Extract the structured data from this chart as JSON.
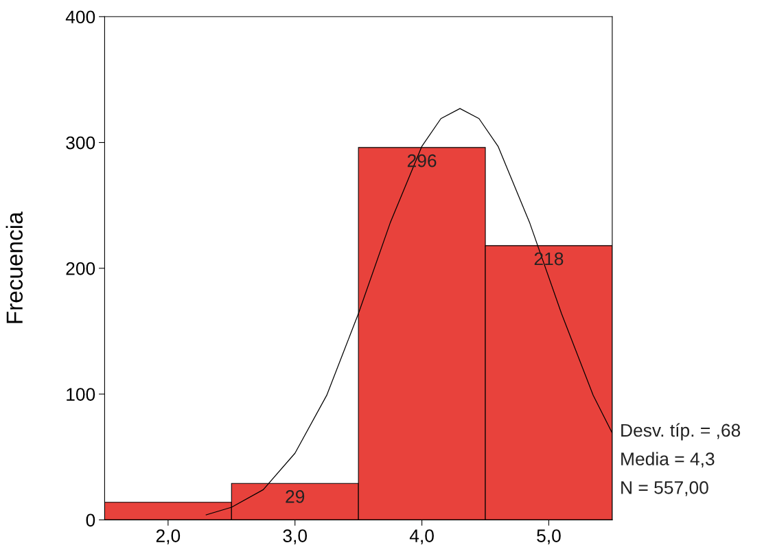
{
  "chart_data": {
    "type": "histogram",
    "ylabel": "Frecuencia",
    "bins": [
      1.5,
      2.5,
      3.5,
      4.5,
      5.5
    ],
    "values": [
      14,
      29,
      296,
      218
    ],
    "value_labels": [
      null,
      "29",
      "296",
      "218"
    ],
    "color": "#e8423c",
    "series": [
      {
        "type": "line",
        "color": "#000000",
        "x": [
          2.3,
          2.5,
          2.75,
          3.0,
          3.25,
          3.5,
          3.75,
          4.0,
          4.15,
          4.3,
          4.45,
          4.6,
          4.85,
          5.1,
          5.35,
          5.5
        ],
        "values": [
          4,
          10,
          24,
          53,
          99,
          164,
          236,
          297,
          319,
          327,
          319,
          297,
          236,
          164,
          99,
          69
        ]
      }
    ],
    "xlim": [
      1.5,
      5.5
    ],
    "xticks": [
      {
        "value": 2,
        "label": "2,0"
      },
      {
        "value": 3,
        "label": "3,0"
      },
      {
        "value": 4,
        "label": "4,0"
      },
      {
        "value": 5,
        "label": "5,0"
      }
    ],
    "ylim": [
      0,
      400
    ],
    "yticks": [
      0,
      100,
      200,
      300,
      400
    ],
    "grid": false,
    "annotations": [
      "Desv. típ. = ,68",
      "Media = 4,3",
      "N = 557,00"
    ]
  }
}
